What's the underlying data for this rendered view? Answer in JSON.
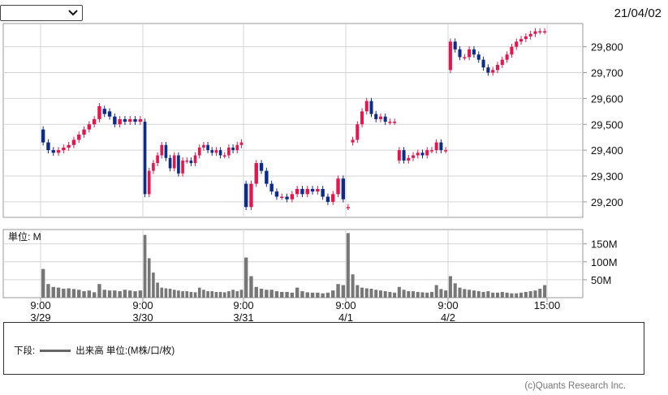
{
  "header": {
    "date": "21/04/02",
    "select_value": ""
  },
  "footer": {
    "legend_prefix": "下段:",
    "legend_label": "出来高 単位:(M株/口/枚)",
    "credit": "(c)Quants Research Inc.",
    "line_color": "#666666"
  },
  "chart_data": {
    "type": "candlestick",
    "up_color": "#e3174e",
    "down_color": "#0d2b8b",
    "price_axis": {
      "ticks": [
        29200,
        29300,
        29400,
        29500,
        29600,
        29700,
        29800
      ],
      "tick_labels": [
        "29,200",
        "29,300",
        "29,400",
        "29,500",
        "29,600",
        "29,700",
        "29,800"
      ],
      "ylim": [
        29140,
        29890
      ]
    },
    "volume_axis": {
      "unit_label": "単位: M",
      "ticks": [
        50,
        100,
        150
      ],
      "tick_labels": [
        "50M",
        "100M",
        "150M"
      ],
      "ylim": [
        0,
        190
      ]
    },
    "x_ticks": [
      {
        "time": "9:00",
        "date": "3/29"
      },
      {
        "time": "9:00",
        "date": "3/30"
      },
      {
        "time": "9:00",
        "date": "3/31"
      },
      {
        "time": "9:00",
        "date": "4/1"
      },
      {
        "time": "9:00",
        "date": "4/2"
      },
      {
        "time": "15:00",
        "date": ""
      }
    ],
    "days": [
      {
        "o": [
          29480,
          29430,
          29400,
          29390,
          29400,
          29410,
          29420,
          29440,
          29460,
          29480,
          29500,
          29520,
          29560,
          29550,
          29530,
          29500,
          29520,
          29510,
          29520,
          29510
        ],
        "c": [
          29430,
          29400,
          29390,
          29400,
          29410,
          29420,
          29440,
          29460,
          29480,
          29500,
          29520,
          29570,
          29540,
          29530,
          29500,
          29520,
          29510,
          29520,
          29510,
          29520
        ],
        "v": [
          80,
          38,
          30,
          28,
          25,
          26,
          24,
          22,
          18,
          20,
          15,
          38,
          22,
          20,
          20,
          18,
          22,
          20,
          18,
          20
        ]
      },
      {
        "o": [
          29510,
          29230,
          29320,
          29350,
          29380,
          29420,
          29370,
          29330,
          29380,
          29310,
          29360,
          29360,
          29350,
          29380,
          29410,
          29420,
          29400,
          29390,
          29400,
          29380,
          29380,
          29410,
          29400,
          29420
        ],
        "c": [
          29230,
          29320,
          29350,
          29380,
          29420,
          29370,
          29330,
          29380,
          29310,
          29360,
          29360,
          29350,
          29380,
          29410,
          29420,
          29400,
          29390,
          29400,
          29380,
          29380,
          29410,
          29400,
          29420,
          29430
        ],
        "v": [
          175,
          110,
          70,
          42,
          28,
          26,
          25,
          22,
          20,
          18,
          18,
          16,
          15,
          28,
          22,
          18,
          18,
          16,
          16,
          15,
          18,
          22,
          18,
          22
        ]
      },
      {
        "o": [
          29270,
          29180,
          29270,
          29350,
          29320,
          29270,
          29240,
          29220,
          29220,
          29210,
          29230,
          29250,
          29230,
          29250,
          29240,
          29250,
          29220,
          29200,
          29230,
          29290
        ],
        "c": [
          29180,
          29270,
          29350,
          29320,
          29270,
          29240,
          29220,
          29220,
          29210,
          29230,
          29250,
          29230,
          29250,
          29240,
          29250,
          29220,
          29200,
          29230,
          29290,
          29210
        ],
        "v": [
          112,
          60,
          30,
          25,
          22,
          22,
          18,
          16,
          16,
          14,
          28,
          18,
          15,
          14,
          14,
          12,
          14,
          20,
          38,
          35
        ]
      },
      {
        "o": [
          29180,
          29430,
          29440,
          29500,
          29550,
          29590,
          29540,
          29520,
          29530,
          29510,
          29510,
          29360,
          29400,
          29360,
          29370,
          29380,
          29390,
          29380,
          29400,
          29400,
          29430,
          29400
        ],
        "c": [
          29180,
          29440,
          29500,
          29550,
          29590,
          29540,
          29520,
          29530,
          29510,
          29510,
          29510,
          29400,
          29360,
          29370,
          29380,
          29390,
          29380,
          29400,
          29400,
          29430,
          29400,
          29400
        ],
        "v": [
          180,
          65,
          35,
          28,
          26,
          25,
          22,
          20,
          18,
          16,
          14,
          30,
          22,
          18,
          18,
          16,
          15,
          14,
          16,
          35,
          24,
          20
        ]
      },
      {
        "o": [
          29710,
          29820,
          29790,
          29760,
          29760,
          29790,
          29770,
          29750,
          29720,
          29700,
          29710,
          29730,
          29750,
          29770,
          29800,
          29820,
          29830,
          29840,
          29850,
          29860,
          29860
        ],
        "c": [
          29820,
          29790,
          29760,
          29760,
          29790,
          29770,
          29750,
          29720,
          29700,
          29710,
          29730,
          29750,
          29770,
          29800,
          29820,
          29830,
          29840,
          29850,
          29860,
          29860,
          29860
        ],
        "v": [
          60,
          40,
          28,
          24,
          22,
          20,
          18,
          16,
          18,
          14,
          14,
          16,
          14,
          12,
          12,
          14,
          16,
          18,
          20,
          25,
          35
        ]
      }
    ]
  }
}
